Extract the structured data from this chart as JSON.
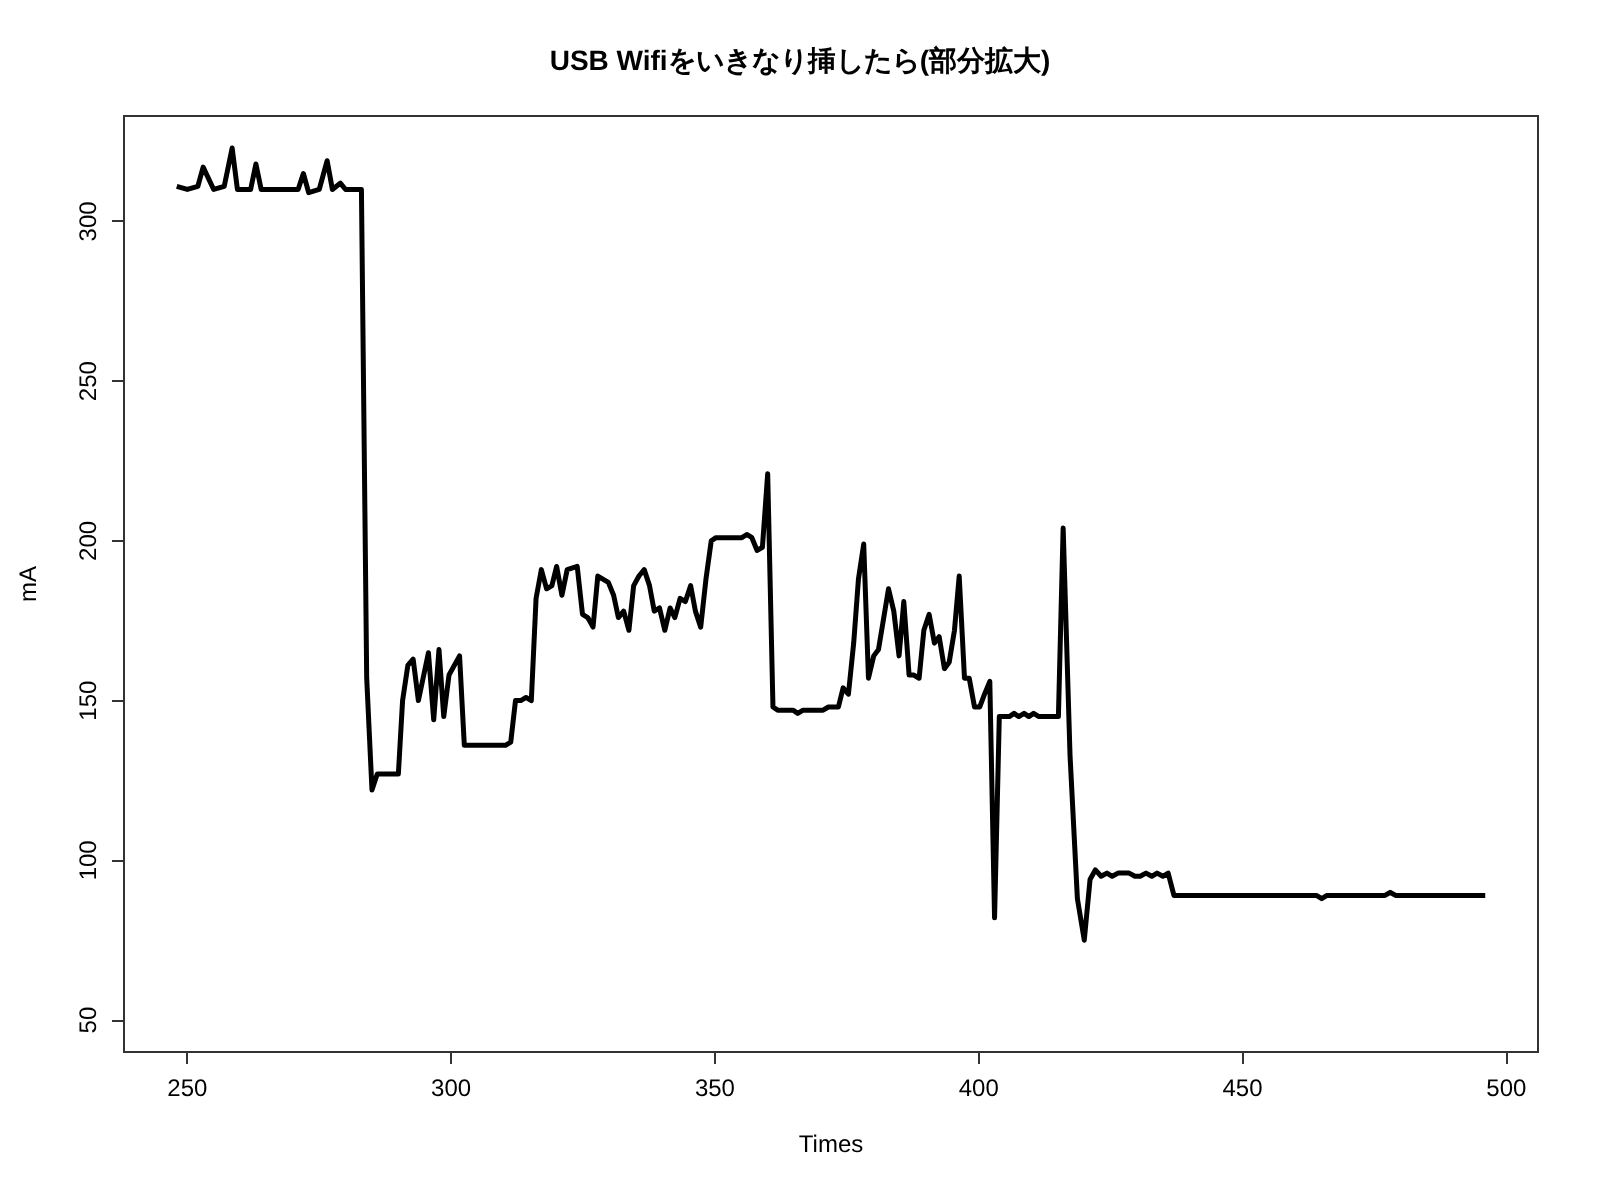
{
  "chart_data": {
    "type": "line",
    "title": "USB Wifiをいきなり挿したら(部分拡大)",
    "xlabel": "Times",
    "ylabel": "mA",
    "xlim": [
      238,
      506
    ],
    "xticks": [
      250,
      300,
      350,
      400,
      450,
      500
    ],
    "ylim": [
      40,
      333
    ],
    "yticks": [
      50,
      100,
      150,
      200,
      250,
      300
    ],
    "grid": false,
    "series": [
      {
        "color": "#000000",
        "x": [
          248,
          250,
          252,
          253,
          255,
          257,
          258.5,
          259.5,
          262,
          263,
          264,
          271,
          272,
          273,
          275,
          276.5,
          277.5,
          279,
          280,
          283,
          284,
          285,
          286,
          290,
          290.8,
          291.8,
          292.8,
          293.8,
          295.7,
          296.7,
          297.7,
          298.6,
          299.6,
          301.6,
          302.5,
          310.3,
          311.3,
          312.2,
          313.2,
          314.2,
          315.2,
          316.1,
          317.1,
          318.1,
          319.1,
          320,
          321,
          322,
          323.9,
          324.9,
          325.9,
          326.9,
          327.8,
          329.8,
          330.8,
          331.7,
          332.7,
          333.7,
          334.6,
          335.6,
          336.6,
          337.6,
          338.5,
          339.5,
          340.5,
          341.5,
          342.4,
          343.4,
          344.4,
          345.4,
          346.3,
          347.3,
          348.3,
          349.3,
          350.2,
          355.1,
          356.1,
          357,
          358,
          359,
          360,
          361,
          361.9,
          364.8,
          365.7,
          366.7,
          370.5,
          371.5,
          373.4,
          374.3,
          375.3,
          376.3,
          377.2,
          378.2,
          379.1,
          380.1,
          381,
          382,
          382.9,
          383.9,
          384.9,
          385.8,
          386.8,
          387.7,
          388.7,
          389.6,
          390.6,
          391.6,
          392.5,
          393.5,
          394.4,
          395.4,
          396.3,
          397.3,
          398.2,
          399.2,
          400.2,
          401.1,
          402.1,
          403,
          403.9,
          405.8,
          406.7,
          407.6,
          408.6,
          409.5,
          410.4,
          411.4,
          415.1,
          416,
          417.3,
          418.7,
          420,
          421.1,
          422.1,
          423.2,
          424.3,
          425.3,
          426.4,
          428.5,
          429.6,
          430.6,
          431.7,
          432.8,
          433.8,
          434.9,
          435.9,
          437,
          464,
          465,
          466,
          477,
          478,
          479,
          496
        ],
        "values": [
          311,
          310,
          311,
          317,
          310,
          311,
          323,
          310,
          310,
          318,
          310,
          310,
          315,
          309,
          310,
          319,
          310,
          312,
          310,
          310,
          157,
          122,
          127,
          127,
          150,
          161,
          163,
          150,
          165,
          144,
          166,
          145,
          158,
          164,
          136,
          136,
          137,
          150,
          150,
          151,
          150,
          182,
          191,
          185,
          186,
          192,
          183,
          191,
          192,
          177,
          176,
          173,
          189,
          187,
          183,
          176,
          178,
          172,
          186,
          189,
          191,
          186,
          178,
          179,
          172,
          179,
          176,
          182,
          181,
          186,
          178,
          173,
          188,
          200,
          201,
          201,
          202,
          201,
          197,
          198,
          221,
          148,
          147,
          147,
          146,
          147,
          147,
          148,
          148,
          154,
          152,
          168,
          188,
          199,
          157,
          164,
          166,
          176,
          185,
          178,
          164,
          181,
          158,
          158,
          157,
          172,
          177,
          168,
          170,
          160,
          162,
          172,
          189,
          157,
          157,
          148,
          148,
          152,
          156,
          82,
          145,
          145,
          146,
          145,
          146,
          145,
          146,
          145,
          145,
          204,
          133,
          88,
          75,
          94,
          97,
          95,
          96,
          95,
          96,
          96,
          95,
          95,
          96,
          95,
          96,
          95,
          96,
          89,
          89,
          88,
          89,
          89,
          90,
          89,
          89
        ]
      }
    ]
  }
}
